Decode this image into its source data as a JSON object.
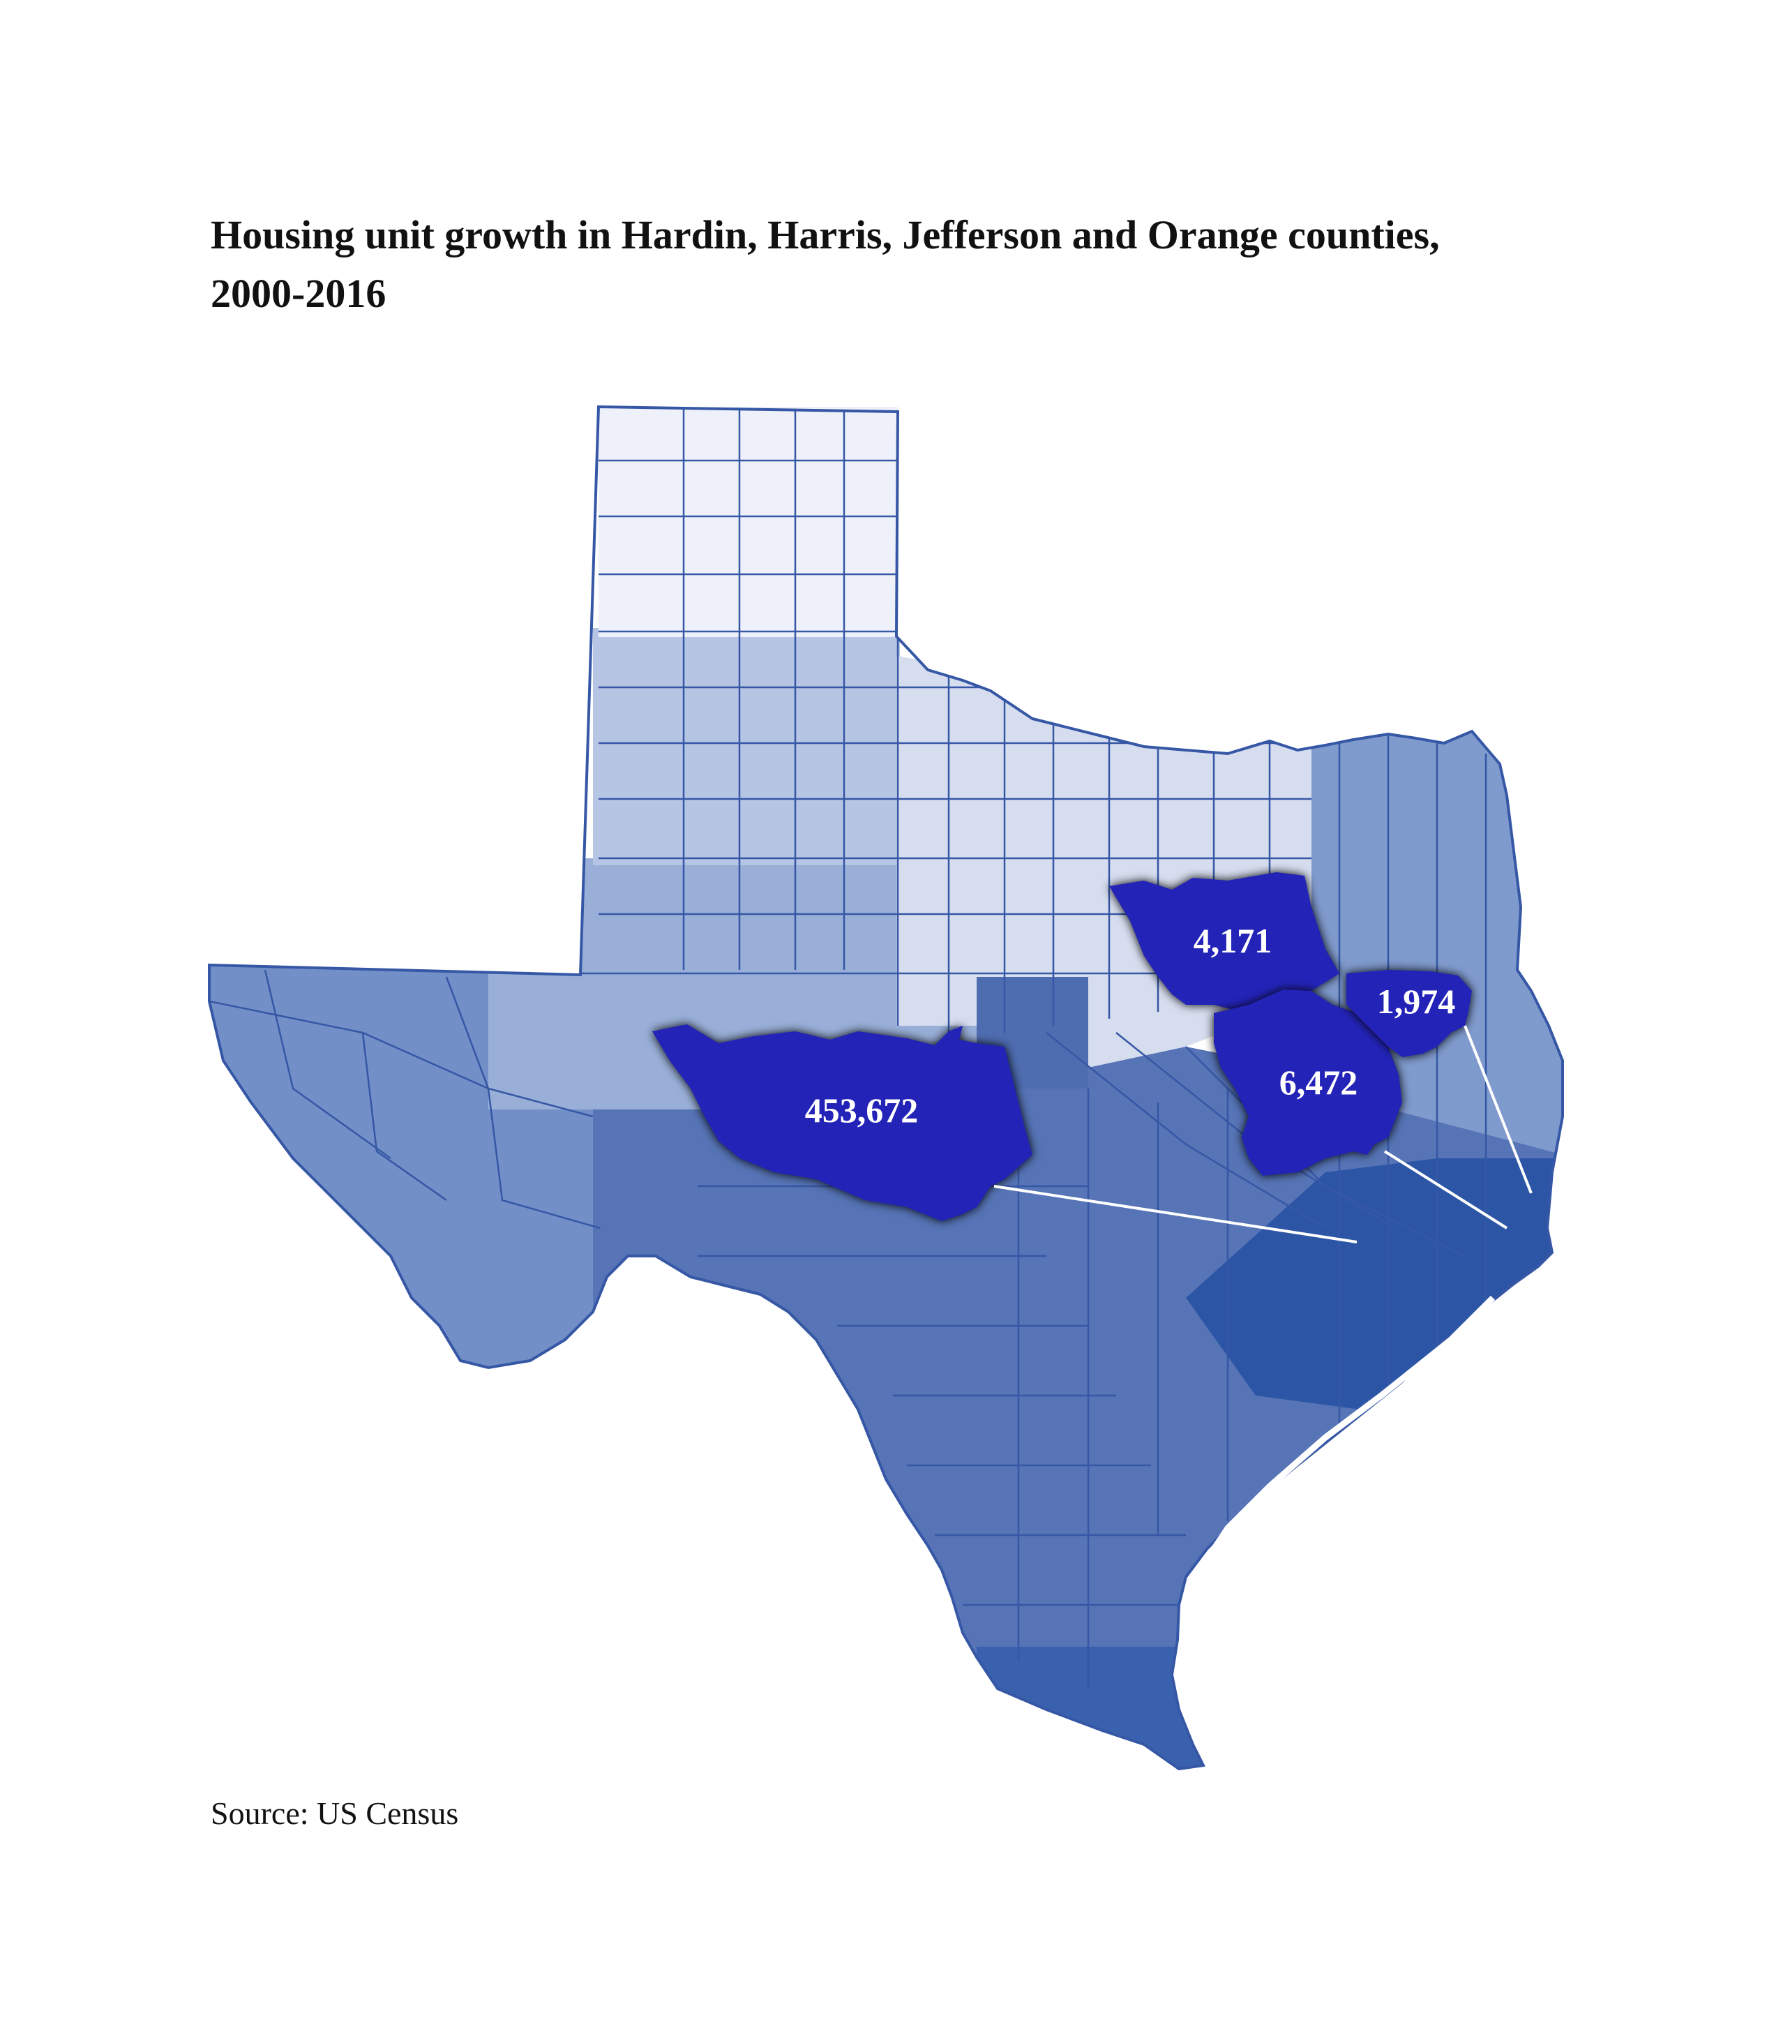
{
  "title_line1": "Housing unit growth in Hardin, Harris, Jefferson and Orange counties,",
  "title_line2": "2000-2016",
  "source": "Source: US Census",
  "colors": {
    "band_lightest": "#eef1fa",
    "band_light": "#d6ddef",
    "band_mid_light": "#b7c5e4",
    "band_mid": "#99afd8",
    "band_west": "#7290c7",
    "band_south": "#5674b6",
    "band_coast": "#2c56a5",
    "county_line": "#3557a5",
    "highlight": "#2323b8",
    "leader_line": "#ffffff"
  },
  "callouts": [
    {
      "county_value": "453,672"
    },
    {
      "county_value": "4,171"
    },
    {
      "county_value": "6,472"
    },
    {
      "county_value": "1,974"
    }
  ]
}
